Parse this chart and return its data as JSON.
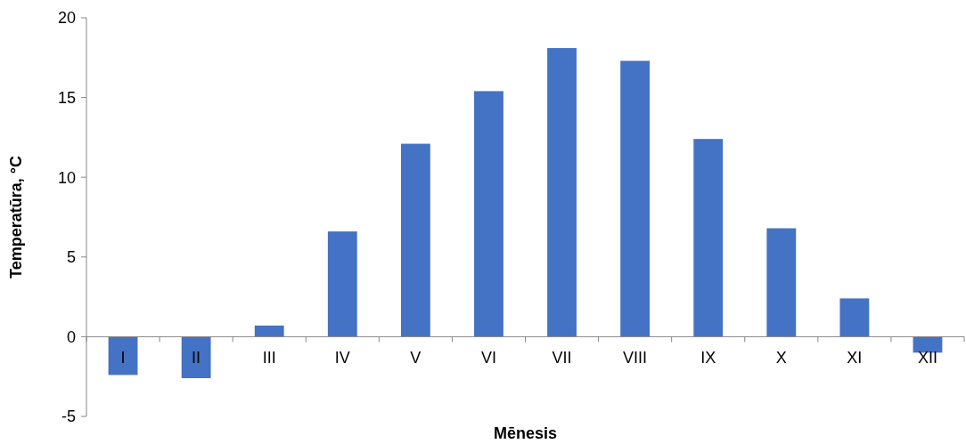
{
  "chart_data": {
    "type": "bar",
    "xlabel": "Mēnesis",
    "ylabel": "Temperatūra, °C",
    "categories": [
      "I",
      "II",
      "III",
      "IV",
      "V",
      "VI",
      "VII",
      "VIII",
      "IX",
      "X",
      "XI",
      "XII"
    ],
    "values": [
      -2.4,
      -2.6,
      0.7,
      6.6,
      12.1,
      15.4,
      18.1,
      17.3,
      12.4,
      6.8,
      2.4,
      -1.0
    ],
    "color": "#4472c4",
    "ylim": [
      -5,
      20
    ],
    "yticks": [
      -5,
      0,
      5,
      10,
      15,
      20
    ],
    "grid": false
  }
}
